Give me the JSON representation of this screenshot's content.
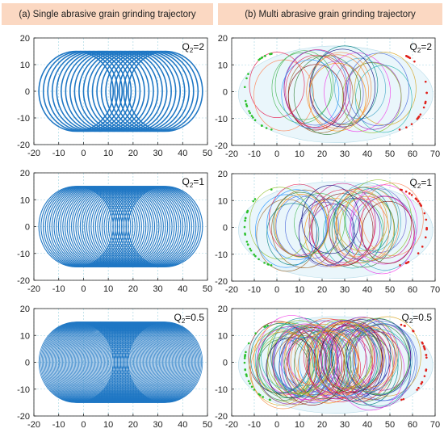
{
  "headers": {
    "a": "(a) Single abrasive grain grinding trajectory",
    "b": "(b) Multi abrasive grain grinding trajectory"
  },
  "colors": {
    "header_bg": "#fbd8c2",
    "single_trajectory": "#1f77c4",
    "grid": "#9fd3e0",
    "axis": "#222222"
  },
  "chart_data": [
    {
      "id": "a1",
      "type": "line",
      "column": "a",
      "row": 1,
      "title": "",
      "xlabel": "",
      "ylabel": "",
      "annotation": {
        "q": "Q",
        "sub": "2",
        "val": "=2"
      },
      "xlim": [
        -20,
        50
      ],
      "ylim": [
        -20,
        20
      ],
      "xticks": [
        -20,
        -10,
        0,
        10,
        20,
        30,
        40,
        50
      ],
      "yticks": [
        -20,
        -10,
        0,
        10,
        20
      ],
      "grid": true,
      "grains": 1,
      "Q2": 2,
      "radius": 15,
      "centers_x_range": [
        -3,
        33
      ],
      "loops": 21
    },
    {
      "id": "b1",
      "type": "line",
      "column": "b",
      "row": 1,
      "title": "",
      "xlabel": "",
      "ylabel": "",
      "annotation": {
        "q": "Q",
        "sub": "2",
        "val": "=2"
      },
      "xlim": [
        -20,
        70
      ],
      "ylim": [
        -20,
        20
      ],
      "xticks": [
        -20,
        -10,
        0,
        10,
        20,
        30,
        40,
        50,
        60,
        70
      ],
      "yticks": [
        -20,
        -10,
        0,
        10,
        20
      ],
      "grid": true,
      "grains": "multiple",
      "Q2": 2,
      "radius": 13,
      "centers_x_range": [
        0,
        52
      ],
      "loops": 24
    },
    {
      "id": "a2",
      "type": "line",
      "column": "a",
      "row": 2,
      "title": "",
      "xlabel": "",
      "ylabel": "",
      "annotation": {
        "q": "Q",
        "sub": "2",
        "val": "=1"
      },
      "xlim": [
        -20,
        50
      ],
      "ylim": [
        -20,
        20
      ],
      "xticks": [
        -20,
        -10,
        0,
        10,
        20,
        30,
        40,
        50
      ],
      "yticks": [
        -20,
        -10,
        0,
        10,
        20
      ],
      "grid": true,
      "grains": 1,
      "Q2": 1,
      "radius": 15,
      "centers_x_range": [
        -3,
        33
      ],
      "loops": 42
    },
    {
      "id": "b2",
      "type": "line",
      "column": "b",
      "row": 2,
      "title": "",
      "xlabel": "",
      "ylabel": "",
      "annotation": {
        "q": "Q",
        "sub": "2",
        "val": "=1"
      },
      "xlim": [
        -20,
        70
      ],
      "ylim": [
        -20,
        20
      ],
      "xticks": [
        -20,
        -10,
        0,
        10,
        20,
        30,
        40,
        50,
        60,
        70
      ],
      "yticks": [
        -20,
        -10,
        0,
        10,
        20
      ],
      "grid": true,
      "grains": "multiple",
      "Q2": 1,
      "radius": 13,
      "centers_x_range": [
        0,
        52
      ],
      "loops": 40
    },
    {
      "id": "a3",
      "type": "line",
      "column": "a",
      "row": 3,
      "title": "",
      "xlabel": "",
      "ylabel": "",
      "annotation": {
        "q": "Q",
        "sub": "2",
        "val": "=0.5"
      },
      "xlim": [
        -20,
        50
      ],
      "ylim": [
        -20,
        20
      ],
      "xticks": [
        -20,
        -10,
        0,
        10,
        20,
        30,
        40,
        50
      ],
      "yticks": [
        -20,
        -10,
        0,
        10,
        20
      ],
      "grid": true,
      "grains": 1,
      "Q2": 0.5,
      "radius": 15,
      "centers_x_range": [
        -3,
        33
      ],
      "loops": 84
    },
    {
      "id": "b3",
      "type": "line",
      "column": "b",
      "row": 3,
      "title": "",
      "xlabel": "",
      "ylabel": "",
      "annotation": {
        "q": "Q",
        "sub": "2",
        "val": "=0.5"
      },
      "xlim": [
        -20,
        70
      ],
      "ylim": [
        -20,
        20
      ],
      "xticks": [
        -20,
        -10,
        0,
        10,
        20,
        30,
        40,
        50,
        60,
        70
      ],
      "yticks": [
        -20,
        -10,
        0,
        10,
        20
      ],
      "grid": true,
      "grains": "multiple",
      "Q2": 0.5,
      "radius": 13,
      "centers_x_range": [
        0,
        52
      ],
      "loops": 90
    }
  ]
}
